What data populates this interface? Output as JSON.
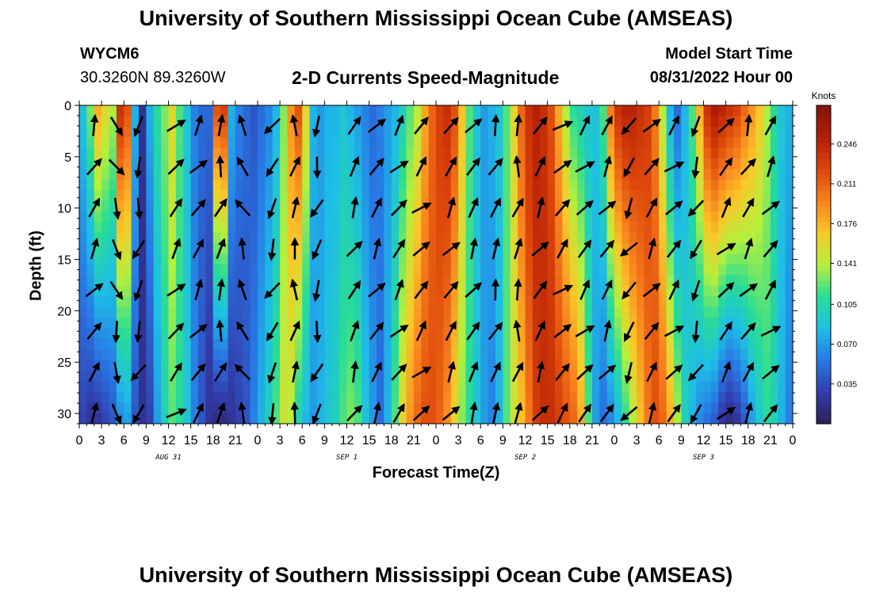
{
  "page": {
    "title": "University of Southern Mississippi Ocean Cube (AMSEAS)",
    "title_repeat": "University of Southern Mississippi Ocean Cube (AMSEAS)",
    "station_id": "WYCM6",
    "station_coords": "30.3260N  89.3260W",
    "plot_title": "2-D Currents Speed-Magnitude",
    "model_start_label": "Model Start Time",
    "model_start_value": "08/31/2022 Hour 00"
  },
  "chart_data": {
    "type": "heatmap",
    "title": "2-D Currents Speed-Magnitude",
    "xlabel": "Forecast Time(Z)",
    "ylabel": "Depth (ft)",
    "x_range_hours": [
      0,
      96
    ],
    "y_range_ft": [
      0,
      31
    ],
    "y_ticks": [
      0,
      5,
      10,
      15,
      20,
      25,
      30
    ],
    "x_ticks_hours": [
      0,
      3,
      6,
      9,
      12,
      15,
      18,
      21,
      24,
      27,
      30,
      33,
      36,
      39,
      42,
      45,
      48,
      51,
      54,
      57,
      60,
      63,
      66,
      69,
      72,
      75,
      78,
      81,
      84,
      87,
      90,
      93,
      96
    ],
    "x_tick_labels": [
      "0",
      "3",
      "6",
      "9",
      "12",
      "15",
      "18",
      "21",
      "0",
      "3",
      "6",
      "9",
      "12",
      "15",
      "18",
      "21",
      "0",
      "3",
      "6",
      "9",
      "12",
      "15",
      "18",
      "21",
      "0",
      "3",
      "6",
      "9",
      "12",
      "15",
      "18",
      "21",
      "0"
    ],
    "day_labels": [
      {
        "text": "AUG 31",
        "hour": 12
      },
      {
        "text": "SEP 1",
        "hour": 36
      },
      {
        "text": "SEP 2",
        "hour": 60
      },
      {
        "text": "SEP 3",
        "hour": 84
      }
    ],
    "colorbar": {
      "unit": "Knots",
      "min": 0.0,
      "max": 0.28,
      "ticks": [
        0.035,
        0.07,
        0.105,
        0.141,
        0.176,
        0.211,
        0.246
      ],
      "tick_labels": [
        "0.035",
        "0.070",
        "0.105",
        "0.141",
        "0.176",
        "0.211",
        "0.246"
      ]
    },
    "speed_profile": {
      "hours": [
        0,
        1,
        2,
        3,
        4,
        5,
        6,
        7,
        8,
        9,
        10,
        11,
        12,
        13,
        14,
        15,
        16,
        17,
        18,
        19,
        20,
        21,
        22,
        23,
        24,
        25,
        26,
        27,
        28,
        29,
        30,
        31,
        32,
        33,
        34,
        35,
        36,
        37,
        38,
        39,
        40,
        41,
        42,
        43,
        44,
        45,
        46,
        47,
        48,
        49,
        50,
        51,
        52,
        53,
        54,
        55,
        56,
        57,
        58,
        59,
        60,
        61,
        62,
        63,
        64,
        65,
        66,
        67,
        68,
        69,
        70,
        71,
        72,
        73,
        74,
        75,
        76,
        77,
        78,
        79,
        80,
        81,
        82,
        83,
        84,
        85,
        86,
        87,
        88,
        89,
        90,
        91,
        92,
        93,
        94,
        95,
        96
      ],
      "surface": [
        0.09,
        0.13,
        0.18,
        0.16,
        0.14,
        0.24,
        0.22,
        0.08,
        0.02,
        0.08,
        0.11,
        0.13,
        0.16,
        0.12,
        0.09,
        0.06,
        0.05,
        0.05,
        0.22,
        0.23,
        0.08,
        0.06,
        0.05,
        0.04,
        0.05,
        0.06,
        0.08,
        0.13,
        0.19,
        0.22,
        0.16,
        0.08,
        0.07,
        0.08,
        0.08,
        0.09,
        0.08,
        0.07,
        0.06,
        0.05,
        0.06,
        0.07,
        0.08,
        0.1,
        0.12,
        0.14,
        0.18,
        0.21,
        0.23,
        0.24,
        0.22,
        0.17,
        0.12,
        0.09,
        0.07,
        0.08,
        0.09,
        0.12,
        0.16,
        0.21,
        0.24,
        0.25,
        0.24,
        0.22,
        0.18,
        0.14,
        0.11,
        0.1,
        0.09,
        0.09,
        0.12,
        0.2,
        0.24,
        0.25,
        0.25,
        0.24,
        0.23,
        0.2,
        0.14,
        0.08,
        0.05,
        0.08,
        0.12,
        0.18,
        0.24,
        0.26,
        0.25,
        0.24,
        0.23,
        0.21,
        0.19,
        0.17,
        0.14,
        0.11,
        0.09,
        0.08,
        0.07
      ],
      "bottom": [
        0.03,
        0.02,
        0.02,
        0.03,
        0.04,
        0.06,
        0.07,
        0.04,
        0.02,
        0.03,
        0.07,
        0.1,
        0.12,
        0.11,
        0.09,
        0.06,
        0.04,
        0.02,
        0.01,
        0.01,
        0.02,
        0.03,
        0.04,
        0.06,
        0.08,
        0.1,
        0.12,
        0.15,
        0.14,
        0.1,
        0.08,
        0.07,
        0.08,
        0.09,
        0.1,
        0.12,
        0.13,
        0.12,
        0.09,
        0.07,
        0.05,
        0.08,
        0.12,
        0.16,
        0.19,
        0.21,
        0.22,
        0.22,
        0.21,
        0.19,
        0.16,
        0.13,
        0.11,
        0.09,
        0.07,
        0.06,
        0.08,
        0.12,
        0.15,
        0.17,
        0.2,
        0.23,
        0.24,
        0.24,
        0.23,
        0.22,
        0.21,
        0.18,
        0.12,
        0.07,
        0.05,
        0.06,
        0.08,
        0.11,
        0.14,
        0.17,
        0.2,
        0.22,
        0.21,
        0.18,
        0.14,
        0.1,
        0.08,
        0.06,
        0.05,
        0.04,
        0.02,
        0.01,
        0.02,
        0.04,
        0.07,
        0.09,
        0.11,
        0.1,
        0.08,
        0.06,
        0.05
      ]
    },
    "arrow_depths_ft": [
      2,
      6,
      10,
      14,
      18,
      22,
      26,
      30
    ],
    "arrow_hours": [
      2,
      5,
      8,
      13,
      16,
      19,
      22,
      26,
      29,
      32,
      37,
      40,
      43,
      46,
      50,
      53,
      56,
      59,
      62,
      65,
      68,
      71,
      74,
      77,
      80,
      83,
      87,
      90,
      93
    ],
    "arrow_directions_deg": [
      30,
      160,
      200,
      45,
      40,
      20,
      340,
      210,
      10,
      200,
      30,
      35,
      40,
      45,
      35,
      30,
      20,
      10,
      30,
      45,
      40,
      30,
      210,
      30,
      40,
      200,
      35,
      30,
      40
    ]
  }
}
